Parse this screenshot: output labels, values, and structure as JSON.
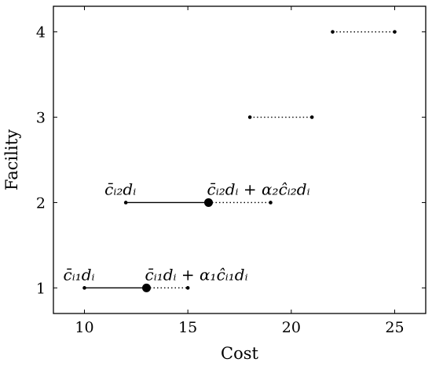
{
  "chart_data": {
    "type": "scatter",
    "xlabel": "Cost",
    "ylabel": "Facility",
    "xlim": [
      8.5,
      26.5
    ],
    "ylim": [
      0.7,
      4.3
    ],
    "xticks": [
      10,
      15,
      20,
      25
    ],
    "yticks": [
      1,
      2,
      3,
      4
    ],
    "grid": false,
    "series": [
      {
        "facility": 1,
        "base_cost": 10,
        "robust_cost": 13,
        "max_cost": 15,
        "solid": true,
        "labels": {
          "base": "c̄ᵢ₁dᵢ",
          "robust": "c̄ᵢ₁dᵢ + α₁ĉᵢ₁dᵢ"
        }
      },
      {
        "facility": 2,
        "base_cost": 12,
        "robust_cost": 16,
        "max_cost": 19,
        "solid": true,
        "labels": {
          "base": "c̄ᵢ₂dᵢ",
          "robust": "c̄ᵢ₂dᵢ + α₂ĉᵢ₂dᵢ"
        }
      },
      {
        "facility": 3,
        "base_cost": 18,
        "max_cost": 21,
        "solid": false
      },
      {
        "facility": 4,
        "base_cost": 22,
        "max_cost": 25,
        "solid": false
      }
    ],
    "colors": {
      "ink": "#000000"
    }
  }
}
